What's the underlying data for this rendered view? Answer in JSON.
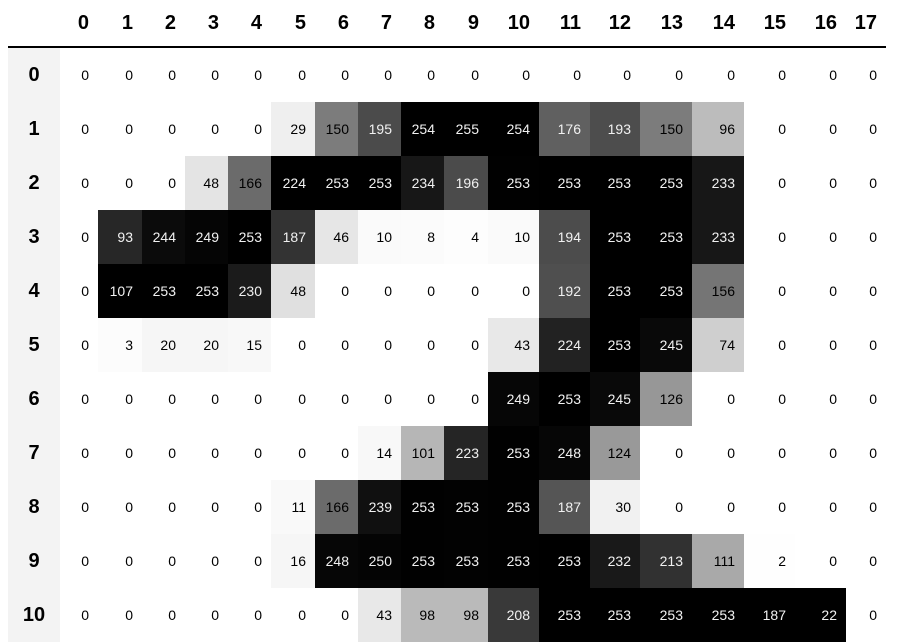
{
  "dataframe": {
    "columns": [
      "0",
      "1",
      "2",
      "3",
      "4",
      "5",
      "6",
      "7",
      "8",
      "9",
      "10",
      "11",
      "12",
      "13",
      "14",
      "15",
      "16",
      "17"
    ],
    "index": [
      "0",
      "1",
      "2",
      "3",
      "4",
      "5",
      "6",
      "7",
      "8",
      "9",
      "10"
    ],
    "colormap": "Greys (per-column gradient)",
    "values": [
      [
        0,
        0,
        0,
        0,
        0,
        0,
        0,
        0,
        0,
        0,
        0,
        0,
        0,
        0,
        0,
        0,
        0,
        0
      ],
      [
        0,
        0,
        0,
        0,
        0,
        29,
        150,
        195,
        254,
        255,
        254,
        176,
        193,
        150,
        96,
        0,
        0,
        0
      ],
      [
        0,
        0,
        0,
        48,
        166,
        224,
        253,
        253,
        234,
        196,
        253,
        253,
        253,
        253,
        233,
        0,
        0,
        0
      ],
      [
        0,
        93,
        244,
        249,
        253,
        187,
        46,
        10,
        8,
        4,
        10,
        194,
        253,
        253,
        233,
        0,
        0,
        0
      ],
      [
        0,
        107,
        253,
        253,
        230,
        48,
        0,
        0,
        0,
        0,
        0,
        192,
        253,
        253,
        156,
        0,
        0,
        0
      ],
      [
        0,
        3,
        20,
        20,
        15,
        0,
        0,
        0,
        0,
        0,
        43,
        224,
        253,
        245,
        74,
        0,
        0,
        0
      ],
      [
        0,
        0,
        0,
        0,
        0,
        0,
        0,
        0,
        0,
        0,
        249,
        253,
        245,
        126,
        0,
        0,
        0,
        0
      ],
      [
        0,
        0,
        0,
        0,
        0,
        0,
        0,
        14,
        101,
        223,
        253,
        248,
        124,
        0,
        0,
        0,
        0,
        0
      ],
      [
        0,
        0,
        0,
        0,
        0,
        11,
        166,
        239,
        253,
        253,
        253,
        187,
        30,
        0,
        0,
        0,
        0,
        0
      ],
      [
        0,
        0,
        0,
        0,
        0,
        16,
        248,
        250,
        253,
        253,
        253,
        253,
        232,
        213,
        111,
        2,
        0,
        0
      ],
      [
        0,
        0,
        0,
        0,
        0,
        0,
        0,
        43,
        98,
        98,
        208,
        253,
        253,
        253,
        253,
        187,
        22,
        0
      ]
    ]
  }
}
